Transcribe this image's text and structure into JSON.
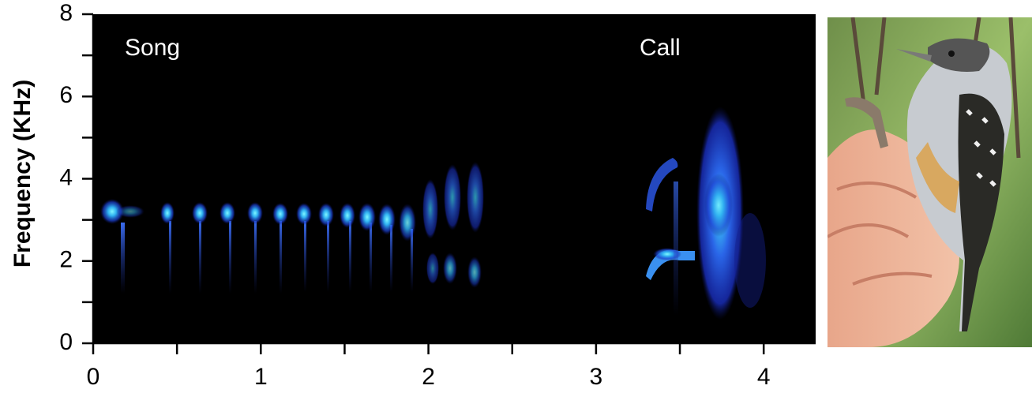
{
  "chart_data": {
    "type": "spectrogram",
    "ylabel": "Frequency (KHz)",
    "annotations": [
      "Song",
      "Call"
    ],
    "xlim": [
      0,
      4.31
    ],
    "ylim": [
      0,
      8
    ],
    "xticks": [
      0,
      1,
      2,
      3,
      4
    ],
    "yticks": [
      0,
      2,
      4,
      6,
      8
    ],
    "xminor": [
      0.5,
      1.5,
      2.5,
      3.5
    ],
    "yminor": [
      1,
      3,
      5,
      7
    ],
    "background": "#000000"
  }
}
